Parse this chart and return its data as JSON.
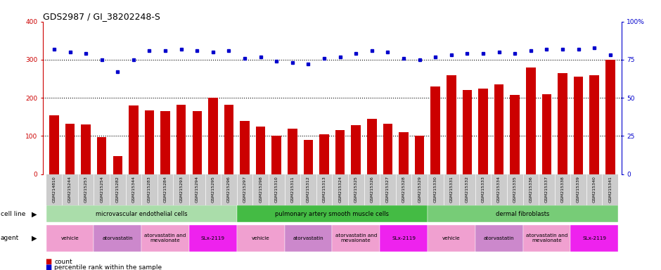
{
  "title": "GDS2987 / GI_38202248-S",
  "samples": [
    "GSM214810",
    "GSM215244",
    "GSM215253",
    "GSM215254",
    "GSM215282",
    "GSM215344",
    "GSM215283",
    "GSM215284",
    "GSM215293",
    "GSM215294",
    "GSM215295",
    "GSM215296",
    "GSM215297",
    "GSM215298",
    "GSM215310",
    "GSM215311",
    "GSM215312",
    "GSM215313",
    "GSM215324",
    "GSM215325",
    "GSM215326",
    "GSM215327",
    "GSM215328",
    "GSM215329",
    "GSM215330",
    "GSM215331",
    "GSM215332",
    "GSM215333",
    "GSM215334",
    "GSM215335",
    "GSM215336",
    "GSM215337",
    "GSM215338",
    "GSM215339",
    "GSM215340",
    "GSM215341"
  ],
  "counts": [
    155,
    132,
    130,
    97,
    48,
    180,
    167,
    165,
    182,
    165,
    200,
    182,
    140,
    125,
    100,
    120,
    90,
    105,
    115,
    128,
    145,
    132,
    110,
    100,
    230,
    260,
    220,
    225,
    235,
    208,
    280,
    210,
    265,
    255,
    260,
    300
  ],
  "percentile_ranks": [
    82,
    80,
    79,
    75,
    67,
    75,
    81,
    81,
    82,
    81,
    80,
    81,
    76,
    77,
    74,
    73,
    72,
    76,
    77,
    79,
    81,
    80,
    76,
    75,
    77,
    78,
    79,
    79,
    80,
    79,
    81,
    82,
    82,
    82,
    83,
    78
  ],
  "cell_line_groups": [
    {
      "label": "microvascular endothelial cells",
      "start": 0,
      "end": 12,
      "color": "#aaeaaa"
    },
    {
      "label": "pulmonary artery smooth muscle cells",
      "start": 12,
      "end": 24,
      "color": "#44cc44"
    },
    {
      "label": "dermal fibroblasts",
      "start": 24,
      "end": 36,
      "color": "#66bb66"
    }
  ],
  "agent_groups": [
    {
      "label": "vehicle",
      "start": 0,
      "end": 3,
      "color": "#f0a0d0"
    },
    {
      "label": "atorvastatin",
      "start": 3,
      "end": 6,
      "color": "#cc88cc"
    },
    {
      "label": "atorvastatin and\nmevalonate",
      "start": 6,
      "end": 9,
      "color": "#f0a0d0"
    },
    {
      "label": "SLx-2119",
      "start": 9,
      "end": 12,
      "color": "#ee22ee"
    },
    {
      "label": "vehicle",
      "start": 12,
      "end": 15,
      "color": "#f0a0d0"
    },
    {
      "label": "atorvastatin",
      "start": 15,
      "end": 18,
      "color": "#cc88cc"
    },
    {
      "label": "atorvastatin and\nmevalonate",
      "start": 18,
      "end": 21,
      "color": "#f0a0d0"
    },
    {
      "label": "SLx-2119",
      "start": 21,
      "end": 24,
      "color": "#ee22ee"
    },
    {
      "label": "vehicle",
      "start": 24,
      "end": 27,
      "color": "#f0a0d0"
    },
    {
      "label": "atorvastatin",
      "start": 27,
      "end": 30,
      "color": "#cc88cc"
    },
    {
      "label": "atorvastatin and\nmevalonate",
      "start": 30,
      "end": 33,
      "color": "#f0a0d0"
    },
    {
      "label": "SLx-2119",
      "start": 33,
      "end": 36,
      "color": "#ee22ee"
    }
  ],
  "bar_color": "#cc0000",
  "dot_color": "#0000cc",
  "ylim_left": [
    0,
    400
  ],
  "ylim_right": [
    0,
    100
  ],
  "yticks_left": [
    0,
    100,
    200,
    300,
    400
  ],
  "yticks_right": [
    0,
    25,
    50,
    75,
    100
  ],
  "right_tick_labels": [
    "0",
    "25",
    "50",
    "75",
    "100%"
  ],
  "grid_values": [
    100,
    200,
    300
  ],
  "title_fontsize": 9,
  "tick_fontsize": 5,
  "legend_items": [
    {
      "color": "#cc0000",
      "label": "count"
    },
    {
      "color": "#0000cc",
      "label": "percentile rank within the sample"
    }
  ]
}
